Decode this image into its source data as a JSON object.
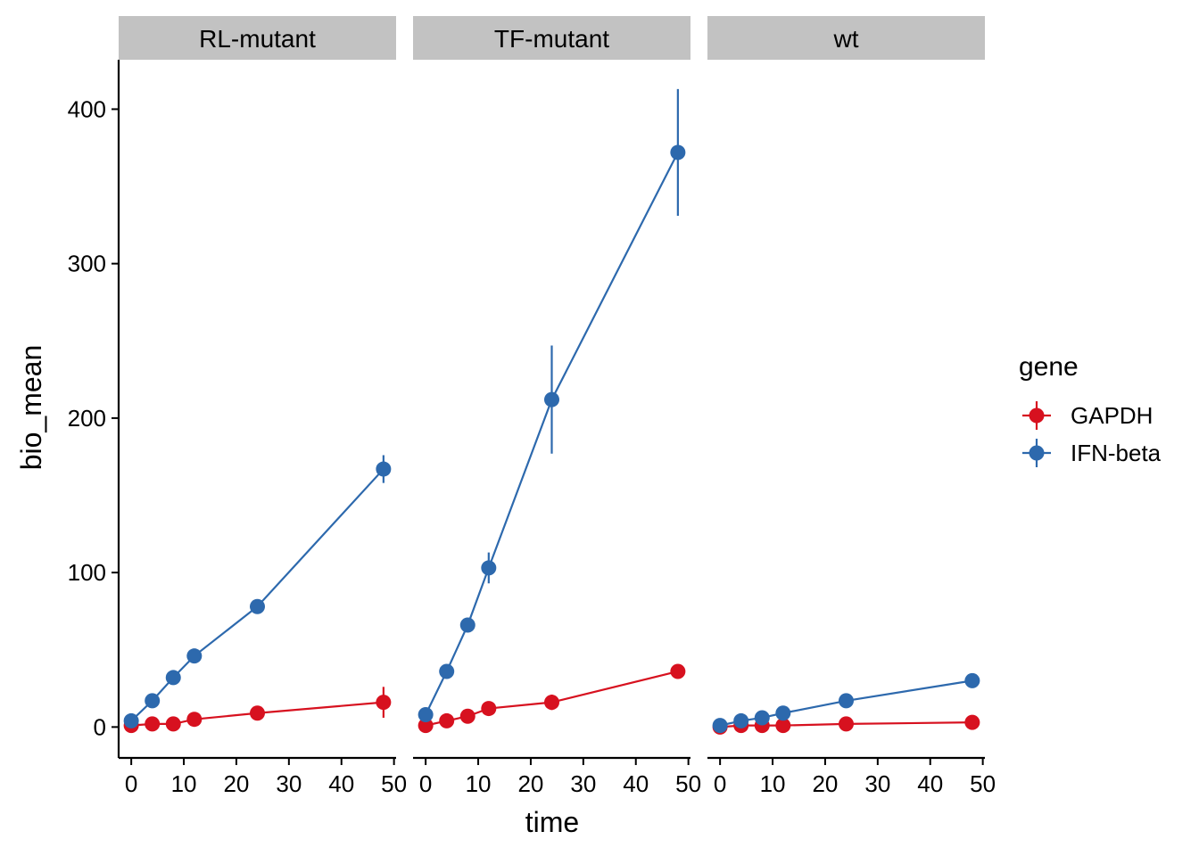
{
  "chart_data": {
    "type": "line",
    "facets": [
      "RL-mutant",
      "TF-mutant",
      "wt"
    ],
    "xlabel": "time",
    "ylabel": "bio_mean",
    "x": [
      0,
      4,
      8,
      12,
      24,
      48
    ],
    "xlim": [
      -2.4,
      50.4
    ],
    "ylim": [
      -20,
      432
    ],
    "x_ticks": [
      0,
      10,
      20,
      30,
      40,
      50
    ],
    "y_ticks": [
      0,
      100,
      200,
      300,
      400
    ],
    "x_tick_labels": [
      "0",
      "10",
      "20",
      "30",
      "40",
      "50"
    ],
    "y_tick_labels": [
      "0",
      "100",
      "200",
      "300",
      "400"
    ],
    "legend": {
      "title": "gene",
      "position": "right",
      "entries": [
        "GAPDH",
        "IFN-beta"
      ]
    },
    "grid": false,
    "panels": [
      {
        "facet": "RL-mutant",
        "series": [
          {
            "name": "GAPDH",
            "color": "#d7111f",
            "values": [
              1,
              2,
              2,
              5,
              9,
              16
            ],
            "err": [
              0,
              0,
              0,
              0,
              0,
              10
            ]
          },
          {
            "name": "IFN-beta",
            "color": "#2d69ad",
            "values": [
              4,
              17,
              32,
              46,
              78,
              167
            ],
            "err": [
              0,
              0,
              0,
              0,
              0,
              9
            ]
          }
        ]
      },
      {
        "facet": "TF-mutant",
        "series": [
          {
            "name": "GAPDH",
            "color": "#d7111f",
            "values": [
              1,
              4,
              7,
              12,
              16,
              36
            ],
            "err": [
              0,
              0,
              0,
              0,
              5,
              0
            ]
          },
          {
            "name": "IFN-beta",
            "color": "#2d69ad",
            "values": [
              8,
              36,
              66,
              103,
              212,
              372
            ],
            "err": [
              0,
              0,
              0,
              10,
              35,
              41
            ]
          }
        ]
      },
      {
        "facet": "wt",
        "series": [
          {
            "name": "GAPDH",
            "color": "#d7111f",
            "values": [
              0,
              1,
              1,
              1,
              2,
              3
            ],
            "err": [
              0,
              0,
              0,
              0,
              0,
              0
            ]
          },
          {
            "name": "IFN-beta",
            "color": "#2d69ad",
            "values": [
              1,
              4,
              6,
              9,
              17,
              30
            ],
            "err": [
              0,
              0,
              0,
              0,
              0,
              0
            ]
          }
        ]
      }
    ]
  }
}
